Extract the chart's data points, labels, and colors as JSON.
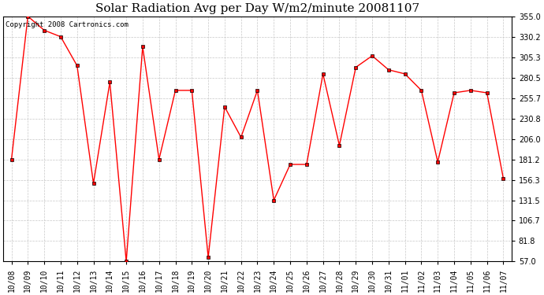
{
  "title": "Solar Radiation Avg per Day W/m2/minute 20081107",
  "copyright": "Copyright 2008 Cartronics.com",
  "line_color": "#ff0000",
  "bg_color": "#ffffff",
  "grid_color": "#c8c8c8",
  "marker": "s",
  "marker_size": 2.5,
  "marker_color": "#000000",
  "labels": [
    "10/08",
    "10/09",
    "10/10",
    "10/11",
    "10/12",
    "10/13",
    "10/14",
    "10/15",
    "10/16",
    "10/17",
    "10/18",
    "10/19",
    "10/20",
    "10/21",
    "10/22",
    "10/23",
    "10/24",
    "10/25",
    "10/26",
    "10/27",
    "10/28",
    "10/29",
    "10/30",
    "10/31",
    "11/01",
    "11/02",
    "11/03",
    "11/04",
    "11/05",
    "11/06",
    "11/07"
  ],
  "values": [
    181.2,
    355.0,
    338.0,
    330.2,
    295.0,
    152.0,
    275.0,
    57.0,
    318.0,
    181.2,
    265.0,
    265.0,
    62.0,
    245.0,
    208.0,
    265.0,
    131.5,
    175.0,
    175.0,
    285.0,
    198.0,
    293.0,
    307.0,
    290.0,
    285.0,
    265.0,
    178.0,
    262.0,
    265.0,
    262.0,
    158.0
  ],
  "ylim": [
    57.0,
    355.0
  ],
  "yticks": [
    57.0,
    81.8,
    106.7,
    131.5,
    156.3,
    181.2,
    206.0,
    230.8,
    255.7,
    280.5,
    305.3,
    330.2,
    355.0
  ],
  "title_fontsize": 11,
  "tick_fontsize": 7,
  "copyright_fontsize": 6.5
}
